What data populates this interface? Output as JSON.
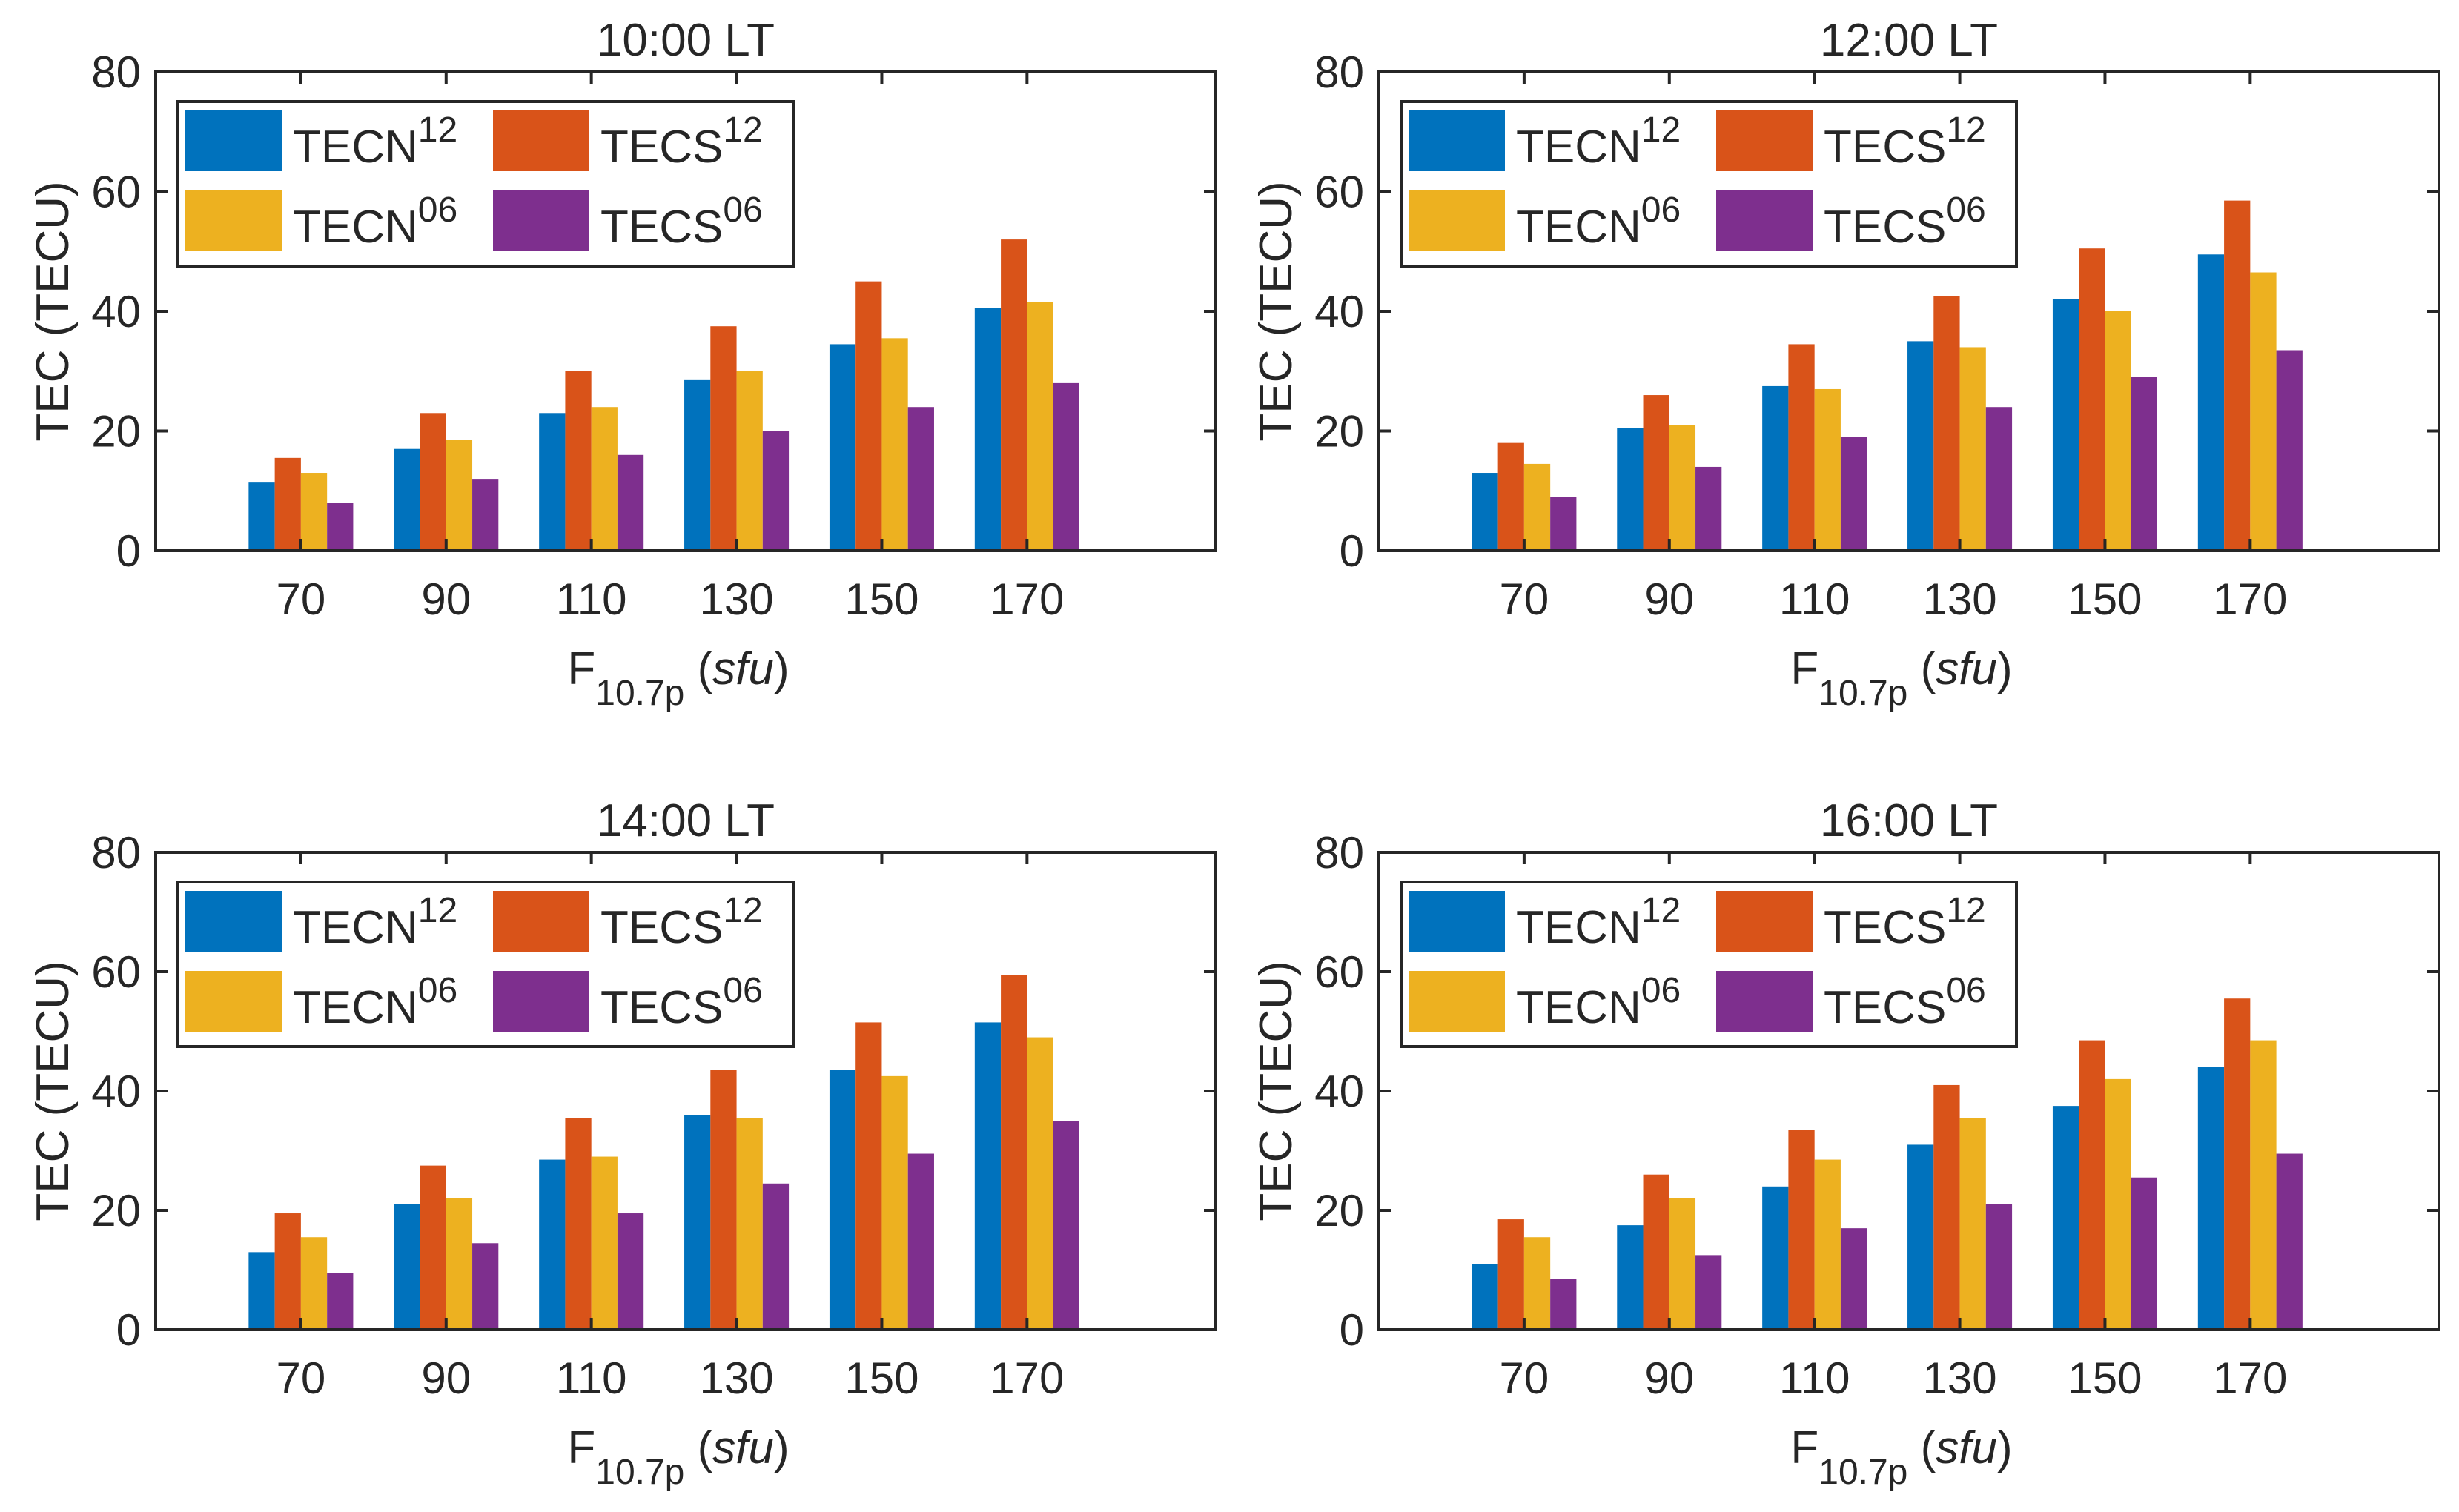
{
  "figure_title": "TEC vs F10.7p at different local times",
  "colors": {
    "TECN12": "#0072BD",
    "TECS12": "#D95319",
    "TECN06": "#EDB120",
    "TECS06": "#7E2F8E",
    "axis": "#262626"
  },
  "legend": [
    {
      "key": "TECN12",
      "base": "TECN",
      "sup": "12"
    },
    {
      "key": "TECS12",
      "base": "TECS",
      "sup": "12"
    },
    {
      "key": "TECN06",
      "base": "TECN",
      "sup": "06"
    },
    {
      "key": "TECS06",
      "base": "TECS",
      "sup": "06"
    }
  ],
  "chart_data": [
    {
      "type": "bar",
      "title": "10:00 LT",
      "categories": [
        "70",
        "90",
        "110",
        "130",
        "150",
        "170"
      ],
      "ylabel": "TEC (TECU)",
      "xlabel": {
        "base": "F",
        "sub": "10.7p",
        "unit": "sfu"
      },
      "ylim": [
        0,
        80
      ],
      "yticks": [
        "0",
        "20",
        "40",
        "60",
        "80"
      ],
      "legend_position": "top-left",
      "series": [
        {
          "name": "TECN12",
          "values": [
            11.5,
            17,
            23,
            28.5,
            34.5,
            40.5
          ]
        },
        {
          "name": "TECS12",
          "values": [
            15.5,
            23,
            30,
            37.5,
            45,
            52
          ]
        },
        {
          "name": "TECN06",
          "values": [
            13,
            18.5,
            24,
            30,
            35.5,
            41.5
          ]
        },
        {
          "name": "TECS06",
          "values": [
            8,
            12,
            16,
            20,
            24,
            28
          ]
        }
      ]
    },
    {
      "type": "bar",
      "title": "12:00 LT",
      "categories": [
        "70",
        "90",
        "110",
        "130",
        "150",
        "170"
      ],
      "ylabel": "TEC (TECU)",
      "xlabel": {
        "base": "F",
        "sub": "10.7p",
        "unit": "sfu"
      },
      "ylim": [
        0,
        80
      ],
      "yticks": [
        "0",
        "20",
        "40",
        "60",
        "80"
      ],
      "legend_position": "top-left",
      "series": [
        {
          "name": "TECN12",
          "values": [
            13,
            20.5,
            27.5,
            35,
            42,
            49.5
          ]
        },
        {
          "name": "TECS12",
          "values": [
            18,
            26,
            34.5,
            42.5,
            50.5,
            58.5
          ]
        },
        {
          "name": "TECN06",
          "values": [
            14.5,
            21,
            27,
            34,
            40,
            46.5
          ]
        },
        {
          "name": "TECS06",
          "values": [
            9,
            14,
            19,
            24,
            29,
            33.5
          ]
        }
      ]
    },
    {
      "type": "bar",
      "title": "14:00 LT",
      "categories": [
        "70",
        "90",
        "110",
        "130",
        "150",
        "170"
      ],
      "ylabel": "TEC (TECU)",
      "xlabel": {
        "base": "F",
        "sub": "10.7p",
        "unit": "sfu"
      },
      "ylim": [
        0,
        80
      ],
      "yticks": [
        "0",
        "20",
        "40",
        "60",
        "80"
      ],
      "legend_position": "top-left",
      "series": [
        {
          "name": "TECN12",
          "values": [
            13,
            21,
            28.5,
            36,
            43.5,
            51.5
          ]
        },
        {
          "name": "TECS12",
          "values": [
            19.5,
            27.5,
            35.5,
            43.5,
            51.5,
            59.5
          ]
        },
        {
          "name": "TECN06",
          "values": [
            15.5,
            22,
            29,
            35.5,
            42.5,
            49
          ]
        },
        {
          "name": "TECS06",
          "values": [
            9.5,
            14.5,
            19.5,
            24.5,
            29.5,
            35
          ]
        }
      ]
    },
    {
      "type": "bar",
      "title": "16:00 LT",
      "categories": [
        "70",
        "90",
        "110",
        "130",
        "150",
        "170"
      ],
      "ylabel": "TEC (TECU)",
      "xlabel": {
        "base": "F",
        "sub": "10.7p",
        "unit": "sfu"
      },
      "ylim": [
        0,
        80
      ],
      "yticks": [
        "0",
        "20",
        "40",
        "60",
        "80"
      ],
      "legend_position": "top-left",
      "series": [
        {
          "name": "TECN12",
          "values": [
            11,
            17.5,
            24,
            31,
            37.5,
            44
          ]
        },
        {
          "name": "TECS12",
          "values": [
            18.5,
            26,
            33.5,
            41,
            48.5,
            55.5
          ]
        },
        {
          "name": "TECN06",
          "values": [
            15.5,
            22,
            28.5,
            35.5,
            42,
            48.5
          ]
        },
        {
          "name": "TECS06",
          "values": [
            8.5,
            12.5,
            17,
            21,
            25.5,
            29.5
          ]
        }
      ]
    }
  ]
}
